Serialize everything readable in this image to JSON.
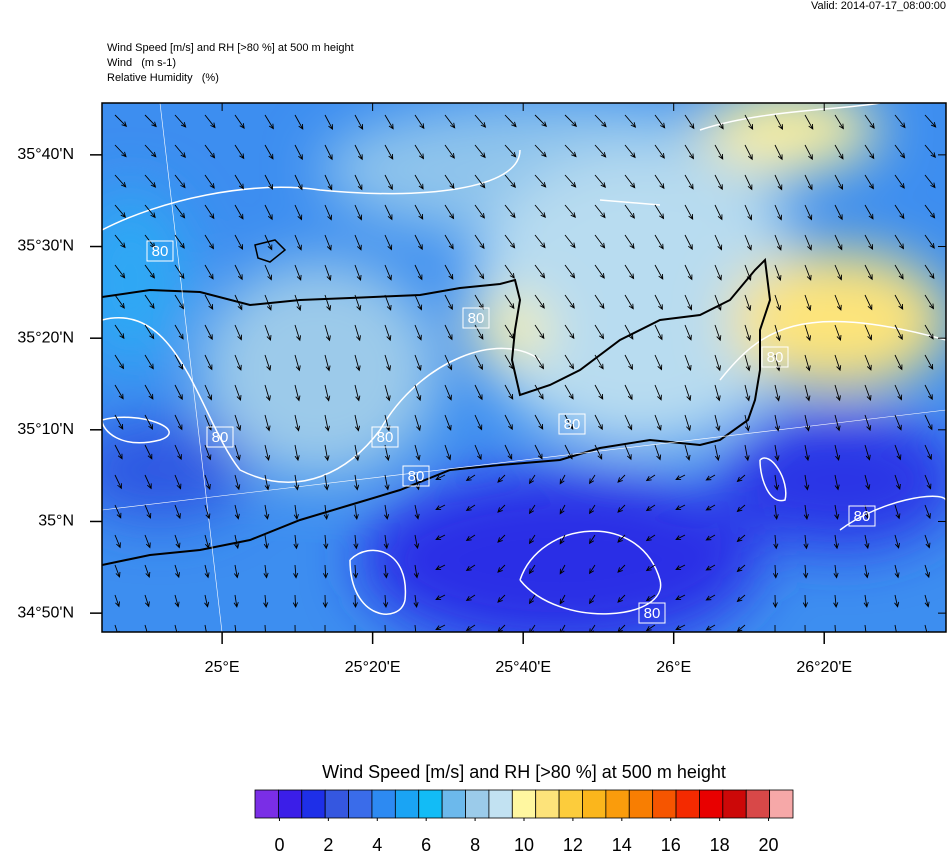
{
  "header": {
    "valid": "Valid: 2014-07-17_08:00:00",
    "title_lines": [
      "Wind Speed [m/s] and RH [>80 %] at 500 m height",
      "Wind   (m s-1)",
      "Relative Humidity   (%)"
    ]
  },
  "map": {
    "lonlim": [
      24.734,
      26.603
    ],
    "latlim": [
      34.799,
      35.761
    ],
    "lat_ticks": [
      {
        "value": 35.6667,
        "label": "35°40'N"
      },
      {
        "value": 35.5,
        "label": "35°30'N"
      },
      {
        "value": 35.3333,
        "label": "35°20'N"
      },
      {
        "value": 35.1667,
        "label": "35°10'N"
      },
      {
        "value": 35,
        "label": "35°N"
      },
      {
        "value": 34.8333,
        "label": "34°50'N"
      }
    ],
    "lon_ticks": [
      {
        "value": 25,
        "label": "25°E"
      },
      {
        "value": 25.3333,
        "label": "25°20'E"
      },
      {
        "value": 25.6667,
        "label": "25°40'E"
      },
      {
        "value": 26,
        "label": "26°E"
      },
      {
        "value": 26.3333,
        "label": "26°20'E"
      }
    ],
    "contour_labels": [
      "80",
      "80",
      "80",
      "80",
      "80",
      "80",
      "80",
      "80",
      "80"
    ]
  },
  "colorbar": {
    "title": "Wind Speed [m/s] and RH [>80 %] at 500 m height",
    "range": [
      -1,
      21
    ],
    "colors": [
      "#7a2ee6",
      "#3b1ee8",
      "#1e2fe8",
      "#3557e0",
      "#3a6cea",
      "#2d8af2",
      "#1aa4f4",
      "#12bcf6",
      "#6cb9ec",
      "#9bcbea",
      "#c2e2f2",
      "#fff7a0",
      "#fde37a",
      "#fccc3c",
      "#fbb61c",
      "#fa9c0c",
      "#f87e02",
      "#f65500",
      "#f42a00",
      "#e80000",
      "#cc0808",
      "#d84848",
      "#f6a8a8"
    ],
    "ticks": [
      0,
      2,
      4,
      6,
      8,
      10,
      12,
      14,
      16,
      18,
      20
    ]
  }
}
